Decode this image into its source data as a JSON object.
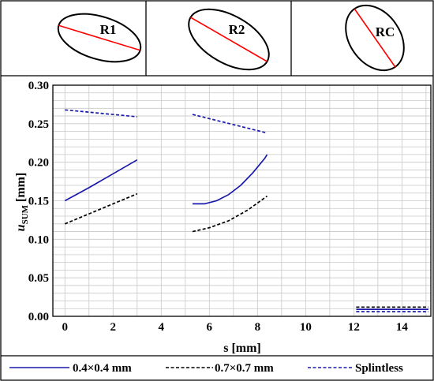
{
  "regions": [
    {
      "label": "R1",
      "angle": 17
    },
    {
      "label": "R2",
      "angle": 30
    },
    {
      "label": "RC",
      "angle": 55
    }
  ],
  "legend": [
    {
      "label": "0.4×0.4 mm",
      "color": "#1a1aaa",
      "dash": "solid"
    },
    {
      "label": "0.7×0.7 mm",
      "color": "#000000",
      "dash": "dashed"
    },
    {
      "label": "Splintless",
      "color": "#1a1aaa",
      "dash": "dashed"
    }
  ],
  "chart_data": {
    "type": "line",
    "xlabel": "s [mm]",
    "ylabel_main": "u",
    "ylabel_sub": "SUM",
    "ylabel_unit": " [mm]",
    "xlim": [
      -0.5,
      15.2
    ],
    "ylim": [
      0.0,
      0.3
    ],
    "xticks": [
      0,
      2,
      4,
      6,
      8,
      10,
      12,
      14
    ],
    "yticks": [
      0.0,
      0.05,
      0.1,
      0.15,
      0.2,
      0.25,
      0.3
    ],
    "ytick_labels": [
      "0.00",
      "0.05",
      "0.10",
      "0.15",
      "0.20",
      "0.25",
      "0.30"
    ],
    "grid": true,
    "series": [
      {
        "name": "0.4×0.4 mm",
        "color": "#1a1aaa",
        "dash": "solid",
        "segments": [
          [
            [
              0,
              0.15
            ],
            [
              1,
              0.167
            ],
            [
              2,
              0.185
            ],
            [
              3,
              0.203
            ]
          ],
          [
            [
              5.3,
              0.146
            ],
            [
              5.8,
              0.146
            ],
            [
              6.3,
              0.15
            ],
            [
              6.8,
              0.158
            ],
            [
              7.3,
              0.17
            ],
            [
              7.8,
              0.186
            ],
            [
              8.3,
              0.205
            ],
            [
              8.4,
              0.21
            ]
          ],
          [
            [
              12.1,
              0.009
            ],
            [
              15.1,
              0.009
            ]
          ]
        ]
      },
      {
        "name": "0.7×0.7 mm",
        "color": "#000000",
        "dash": "dashed",
        "segments": [
          [
            [
              0,
              0.12
            ],
            [
              1,
              0.133
            ],
            [
              2,
              0.146
            ],
            [
              3,
              0.159
            ]
          ],
          [
            [
              5.3,
              0.11
            ],
            [
              6.0,
              0.115
            ],
            [
              6.8,
              0.124
            ],
            [
              7.6,
              0.138
            ],
            [
              8.4,
              0.156
            ]
          ],
          [
            [
              12.1,
              0.012
            ],
            [
              15.1,
              0.012
            ]
          ]
        ]
      },
      {
        "name": "Splintless",
        "color": "#1a1aaa",
        "dash": "dashed",
        "segments": [
          [
            [
              0,
              0.268
            ],
            [
              3,
              0.259
            ]
          ],
          [
            [
              5.3,
              0.262
            ],
            [
              8.4,
              0.238
            ]
          ],
          [
            [
              12.1,
              0.006
            ],
            [
              15.1,
              0.006
            ]
          ]
        ]
      }
    ]
  }
}
